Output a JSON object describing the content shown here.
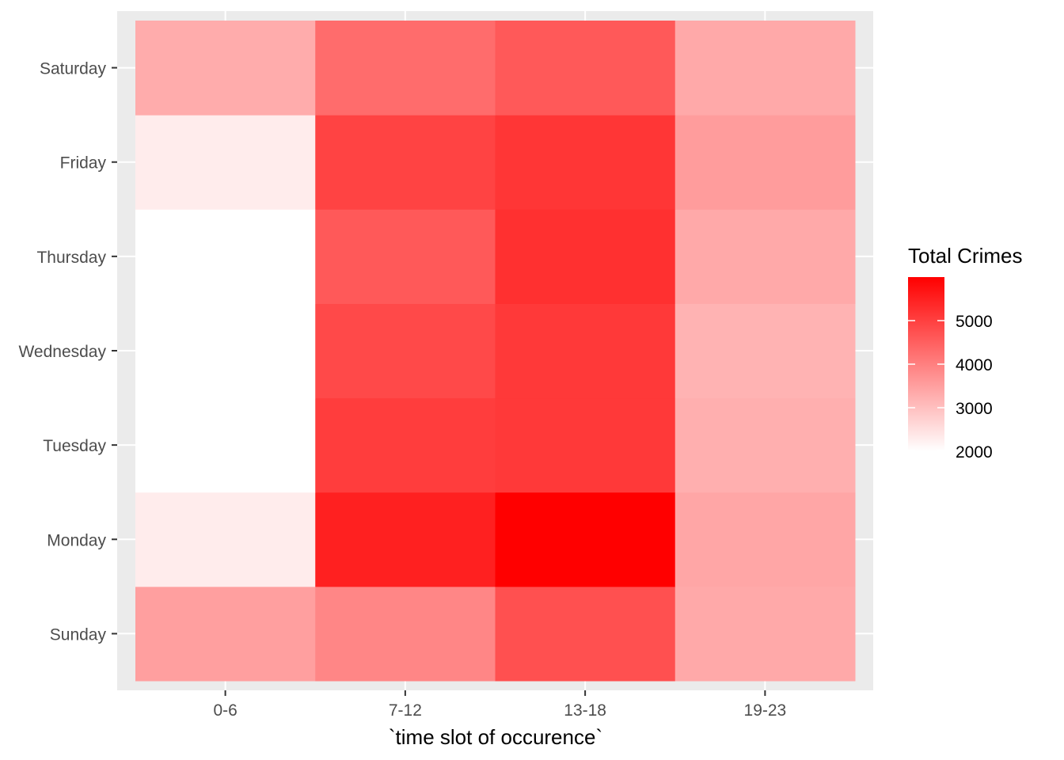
{
  "chart_data": {
    "type": "heatmap",
    "xlabel": "`time slot of occurence`",
    "ylabel": "",
    "x_categories": [
      "0-6",
      "7-12",
      "13-18",
      "19-23"
    ],
    "y_categories": [
      "Sunday",
      "Monday",
      "Tuesday",
      "Wednesday",
      "Thursday",
      "Friday",
      "Saturday"
    ],
    "values": [
      [
        3500,
        3900,
        4750,
        3350
      ],
      [
        2300,
        5500,
        6000,
        3400
      ],
      [
        2000,
        5050,
        5100,
        3250
      ],
      [
        2000,
        4850,
        5100,
        3200
      ],
      [
        2000,
        4600,
        5250,
        3350
      ],
      [
        2300,
        4950,
        5150,
        3550
      ],
      [
        3300,
        4300,
        4600,
        3350
      ]
    ],
    "colorbar": {
      "title": "Total Crimes",
      "min": 2000,
      "max": 6000,
      "low_color": "#ffffff",
      "high_color": "#ff0000",
      "breaks": [
        2000,
        3000,
        4000,
        5000
      ]
    },
    "panel_background": "#ebebeb",
    "grid": true,
    "legend_position": "right"
  }
}
